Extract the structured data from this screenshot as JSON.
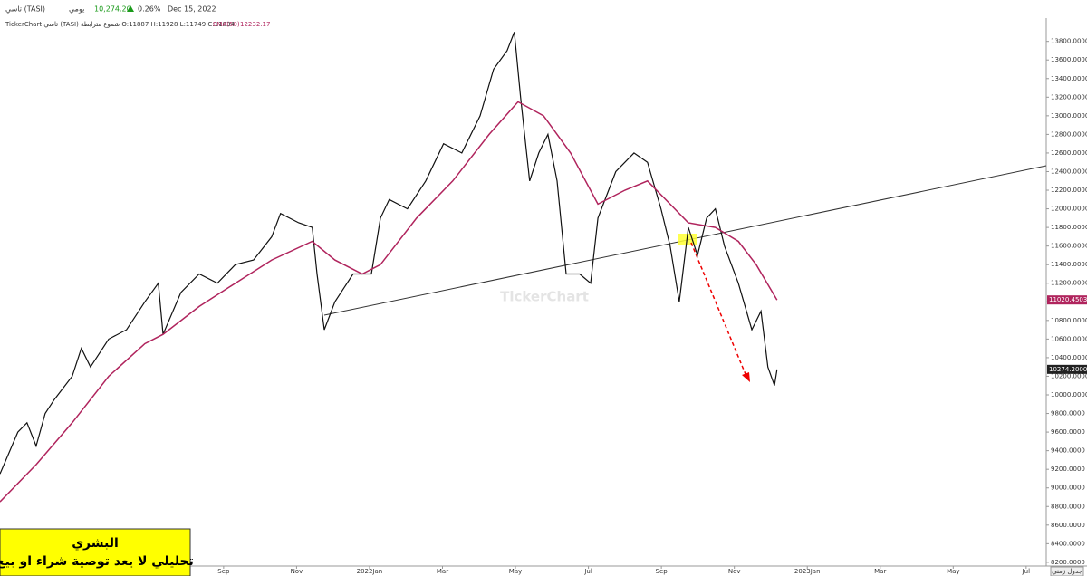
{
  "header": {
    "period": "يومي",
    "last": "10,274.20",
    "change": "0.26%",
    "date": "Dec 15, 2022",
    "info": "TickerChart تاسي (TASI) شموع مترابطة O:11887 H:11928 L:11749 C:11834",
    "ema_value": "12232.17",
    "watermark": "TickerChart",
    "timeframe": "جدول زمني"
  },
  "note": {
    "line1": "البشري",
    "line2": "تحليلي لا يعد توصية شراء او بيع"
  },
  "chart_data": {
    "type": "line",
    "xlim": [
      1.87,
      30.55
    ],
    "ylim": [
      8160,
      14050
    ],
    "xticks": [
      {
        "value": 8,
        "label": "Sep"
      },
      {
        "value": 10,
        "label": "Nov"
      },
      {
        "value": 12,
        "label": "2022Jan"
      },
      {
        "value": 14,
        "label": "Mar"
      },
      {
        "value": 16,
        "label": "May"
      },
      {
        "value": 18,
        "label": "Jul"
      },
      {
        "value": 20,
        "label": "Sep"
      },
      {
        "value": 22,
        "label": "Nov"
      },
      {
        "value": 24,
        "label": "2023Jan"
      },
      {
        "value": 26,
        "label": "Mar"
      },
      {
        "value": 28,
        "label": "May"
      },
      {
        "value": 30,
        "label": "Jul"
      }
    ],
    "yticks": [
      {
        "value": 8200,
        "label": "8200.0000"
      },
      {
        "value": 8400,
        "label": "8400.0000"
      },
      {
        "value": 8600,
        "label": "8600.0000"
      },
      {
        "value": 8800,
        "label": "8800.0000"
      },
      {
        "value": 9000,
        "label": "9000.0000"
      },
      {
        "value": 9200,
        "label": "9200.0000"
      },
      {
        "value": 9400,
        "label": "9400.0000"
      },
      {
        "value": 9600,
        "label": "9600.0000"
      },
      {
        "value": 9800,
        "label": "9800.0000"
      },
      {
        "value": 10000,
        "label": "10000.0000"
      },
      {
        "value": 10200,
        "label": "10200.0000"
      },
      {
        "value": 10400,
        "label": "10400.0000"
      },
      {
        "value": 10600,
        "label": "10600.0000"
      },
      {
        "value": 10800,
        "label": "10800.0000"
      },
      {
        "value": 11000,
        "label": "11000.0000"
      },
      {
        "value": 11200,
        "label": "11200.0000"
      },
      {
        "value": 11400,
        "label": "11400.0000"
      },
      {
        "value": 11600,
        "label": "11600.0000"
      },
      {
        "value": 11800,
        "label": "11800.0000"
      },
      {
        "value": 12000,
        "label": "12000.0000"
      },
      {
        "value": 12200,
        "label": "12200.0000"
      },
      {
        "value": 12400,
        "label": "12400.0000"
      },
      {
        "value": 12600,
        "label": "12600.0000"
      },
      {
        "value": 12800,
        "label": "12800.0000"
      },
      {
        "value": 13000,
        "label": "13000.0000"
      },
      {
        "value": 13200,
        "label": "13200.0000"
      },
      {
        "value": 13400,
        "label": "13400.0000"
      },
      {
        "value": 13600,
        "label": "13600.0000"
      },
      {
        "value": 13800,
        "label": "13800.0000"
      }
    ],
    "series": [
      {
        "name": "تاسي (TASI)",
        "color": "#111111",
        "x": [
          1.87,
          2.36,
          2.61,
          2.86,
          3.11,
          3.36,
          3.85,
          4.1,
          4.35,
          4.85,
          5.34,
          5.84,
          6.21,
          6.34,
          6.83,
          7.33,
          7.83,
          8.32,
          8.82,
          9.32,
          9.56,
          10.06,
          10.43,
          10.56,
          10.76,
          11.05,
          11.55,
          12.05,
          12.3,
          12.54,
          13.04,
          13.54,
          14.03,
          14.53,
          15.03,
          15.4,
          15.77,
          15.97,
          16.14,
          16.39,
          16.64,
          16.89,
          17.14,
          17.39,
          17.76,
          18.06,
          18.26,
          18.75,
          19.25,
          19.62,
          19.99,
          20.24,
          20.49,
          20.74,
          20.99,
          21.24,
          21.48,
          21.73,
          22.11,
          22.48,
          22.73,
          22.92,
          23.1,
          23.17
        ],
        "values": [
          9150,
          9600,
          9700,
          9450,
          9800,
          9950,
          10200,
          10500,
          10300,
          10600,
          10700,
          11000,
          11200,
          10650,
          11100,
          11300,
          11200,
          11400,
          11450,
          11700,
          11950,
          11850,
          11800,
          11300,
          10700,
          11000,
          11300,
          11300,
          11900,
          12100,
          12000,
          12300,
          12700,
          12600,
          13000,
          13500,
          13700,
          13900,
          13200,
          12300,
          12600,
          12800,
          12300,
          11300,
          11300,
          11200,
          11900,
          12400,
          12600,
          12500,
          12000,
          11600,
          11000,
          11800,
          11500,
          11900,
          12000,
          11600,
          11200,
          10700,
          10900,
          10300,
          10100,
          10274
        ]
      },
      {
        "name": "EMA(50)",
        "color": "#b0245d",
        "x": [
          1.87,
          2.86,
          3.85,
          4.85,
          5.84,
          6.34,
          7.33,
          8.32,
          9.32,
          10.43,
          11.05,
          11.8,
          12.3,
          13.29,
          14.28,
          15.28,
          16.07,
          16.77,
          17.51,
          18.26,
          19.0,
          19.62,
          20.24,
          20.74,
          21.48,
          22.11,
          22.6,
          23.17
        ],
        "values": [
          8850,
          9250,
          9700,
          10200,
          10550,
          10650,
          10950,
          11200,
          11450,
          11650,
          11450,
          11300,
          11400,
          11900,
          12300,
          12800,
          13150,
          13000,
          12600,
          12050,
          12200,
          12300,
          12050,
          11850,
          11800,
          11650,
          11400,
          11020
        ]
      }
    ],
    "price_tags": [
      {
        "value": 11020.4503,
        "label": "11020.4503",
        "color": "#b0245d"
      },
      {
        "value": 10274.2,
        "label": "10274.2000",
        "color": "#222222"
      }
    ]
  }
}
